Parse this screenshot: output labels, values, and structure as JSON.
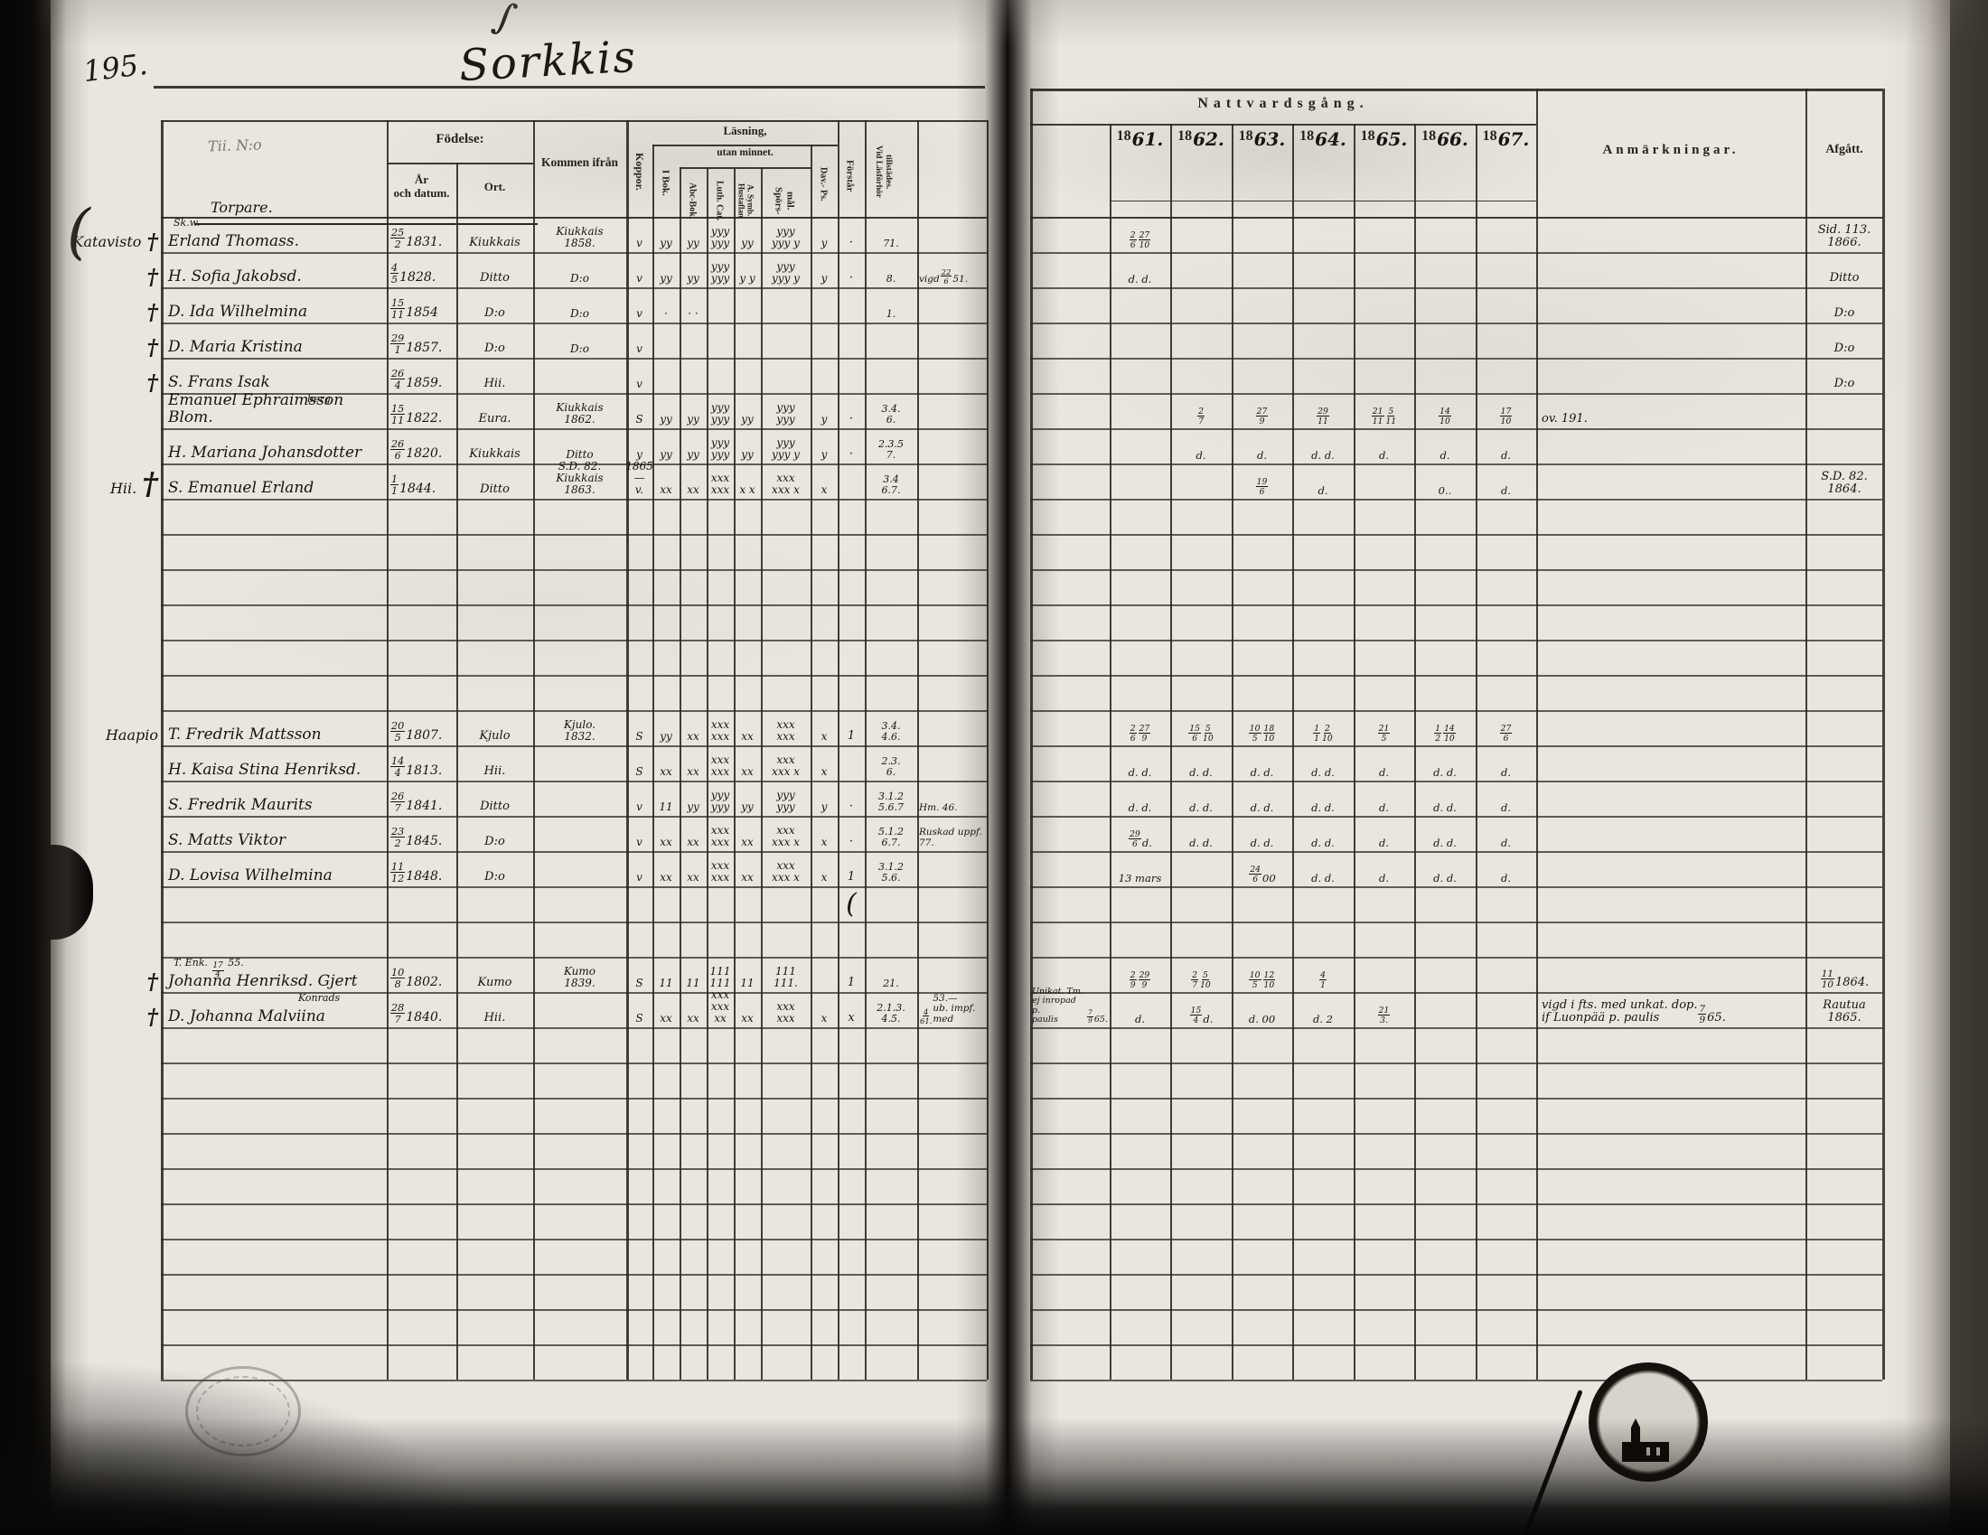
{
  "page": {
    "number": "195.",
    "title": "Sorkkis"
  },
  "header": {
    "name_col_note": "Tii. N:o",
    "fodelse": "Födelse:",
    "ar_och_datum": "År\noch datum.",
    "ort": "Ort.",
    "kommen": "Kommen ifrån",
    "koppor": "Koppor.",
    "lasning": "Läsning,",
    "utan_minnet": "utan minnet.",
    "i_bok": "I Bok.",
    "abc": "Abc-Bok.",
    "luth": "Luth. Cat.",
    "hust": "Hustaflan\nA. Symb.",
    "spors": "Spörs-\nmål.",
    "dav": "Dav.- Ps.",
    "forstar": "Förstår",
    "vidlasforhor": "Vid Läsförhör\ntillstädes.",
    "natt": "Nattvardsgång.",
    "year_prefix": "18",
    "years": [
      "61.",
      "62.",
      "63.",
      "64.",
      "65.",
      "66.",
      "67."
    ],
    "anm": "Anmärkningar.",
    "afg": "Afgått."
  },
  "sections": {
    "torpare": "Torpare."
  },
  "margins": [
    {
      "row": 0,
      "label": "Katavisto",
      "cross": true
    },
    {
      "row": 1,
      "cross": true
    },
    {
      "row": 2,
      "cross": true
    },
    {
      "row": 3,
      "cross": true
    },
    {
      "row": 4,
      "cross": true
    },
    {
      "row": 7,
      "label": "Hii.",
      "cross": true,
      "big": true
    },
    {
      "row": 14,
      "label": "Haapio"
    },
    {
      "row": 21,
      "cross": true
    },
    {
      "row": 22,
      "cross": true
    }
  ],
  "rows": [
    {
      "pre": "Sk.w.",
      "name": "Erland Thomass.",
      "born": "25/2 1831.",
      "ort": "Kiukkais",
      "kommen": "Kiukkais\n1858.",
      "koppor": "v",
      "ibok": "yy",
      "abc": "yy",
      "luth": "yyy\nyyy",
      "hust": "yy",
      "spors": "yyy\nyyy y",
      "dav": "y",
      "forstar": "·",
      "lasf": "71.",
      "natt": [
        "",
        "2/6 27/10",
        "",
        "",
        "",
        "",
        "",
        ""
      ],
      "afg": "Sid. 113.\n1866."
    },
    {
      "name": "H. Sofia Jakobsd.",
      "born": "4/5 1828.",
      "ort": "Ditto",
      "kommen": "D:o",
      "koppor": "v",
      "ibok": "yy",
      "abc": "yy",
      "luth": "yyy\nyyy",
      "hust": "y y",
      "spors": "yyy\nyyy y",
      "dav": "y",
      "forstar": "·",
      "lasf": "8.",
      "note": "vigd 22/6 51.",
      "natt": [
        "",
        "d. d.",
        "",
        "",
        "",
        "",
        "",
        ""
      ],
      "afg": "Ditto"
    },
    {
      "name": "D. Ida Wilhelmina",
      "born": "15/11 1854",
      "ort": "D:o",
      "kommen": "D:o",
      "koppor": "v",
      "ibok": "·",
      "abc": "· ·",
      "lasf": "1.",
      "afg": "D:o"
    },
    {
      "name": "D. Maria Kristina",
      "born": "29/1 1857.",
      "ort": "D:o",
      "kommen": "D:o",
      "koppor": "v",
      "afg": "D:o"
    },
    {
      "name": "S. Frans Isak",
      "born": "26/4 1859.",
      "ort": "Hii.",
      "koppor": "v",
      "afg": "D:o"
    },
    {
      "preRight": "berg",
      "name": "Emanuel Ephraimsson Blom.",
      "born": "15/11 1822.",
      "ort": "Eura.",
      "kommen": "Kiukkais\n1862.",
      "koppor": "S",
      "ibok": "yy",
      "abc": "yy",
      "luth": "yyy\nyyy",
      "hust": "yy",
      "spors": "yyy\nyyy",
      "dav": "y",
      "forstar": "·",
      "lasf": "3.4.\n6.",
      "natt": [
        "",
        "",
        "2/7",
        "27/9",
        "29/11",
        "21/11 5/11",
        "14/10",
        "17/10"
      ],
      "anm": "ov. 191."
    },
    {
      "name": "H. Mariana Johansdotter",
      "born": "26/6 1820.",
      "ort": "Kiukkais",
      "kommen": "Ditto",
      "koppor": "y",
      "ibok": "yy",
      "abc": "yy",
      "luth": "yyy\nyyy",
      "hust": "yy",
      "spors": "yyy\nyyy y",
      "dav": "y",
      "forstar": "·",
      "lasf": "2.3.5\n7.",
      "natt": [
        "",
        "",
        "d.",
        "d.",
        "d. d.",
        "d.",
        "d.",
        "d."
      ]
    },
    {
      "name": "S. Emanuel Erland",
      "born": "1/1 1844.",
      "ort": "Ditto",
      "kommen": "S.D. 82.\nKiukkais\n1863.",
      "koppor": "1865—\nv.",
      "ibok": "xx",
      "abc": "xx",
      "luth": "xxx\nxxx",
      "hust": "x x",
      "spors": "xxx\nxxx x",
      "dav": "x",
      "lasf": "3.4\n6.7.",
      "natt": [
        "",
        "",
        "",
        "19/6",
        "d.",
        "",
        "0..",
        "d."
      ],
      "afg": "S.D. 82.\n1864."
    },
    {},
    {},
    {},
    {},
    {},
    {},
    {
      "name": "T. Fredrik Mattsson",
      "born": "20/5 1807.",
      "ort": "Kjulo",
      "kommen": "Kjulo.\n1832.",
      "koppor": "S",
      "ibok": "yy",
      "abc": "xx",
      "luth": "xxx\nxxx",
      "hust": "xx",
      "spors": "xxx\nxxx",
      "dav": "x",
      "forstar": "1",
      "lasf": "3.4.\n4.6.",
      "natt": [
        "",
        "2/6 27/9",
        "15/6 5/10",
        "10/5 18/10",
        "1/1 2/10",
        "21/5",
        "1/2 14/10",
        "27/6"
      ]
    },
    {
      "name": "H. Kaisa Stina Henriksd.",
      "born": "14/4 1813.",
      "ort": "Hii.",
      "koppor": "S",
      "ibok": "xx",
      "abc": "xx",
      "luth": "xxx\nxxx",
      "hust": "xx",
      "spors": "xxx\nxxx x",
      "dav": "x",
      "lasf": "2.3.\n6.",
      "natt": [
        "",
        "d. d.",
        "d. d.",
        "d. d.",
        "d. d.",
        "d.",
        "d. d.",
        "d."
      ]
    },
    {
      "name": "S. Fredrik Maurits",
      "born": "26/7 1841.",
      "ort": "Ditto",
      "koppor": "v",
      "ibok": "11",
      "abc": "yy",
      "luth": "yyy\nyyy",
      "hust": "yy",
      "spors": "yyy\nyyy",
      "dav": "y",
      "forstar": "·",
      "lasf": "3.1.2\n5.6.7",
      "note": "Hm. 46.",
      "natt": [
        "",
        "d. d.",
        "d. d.",
        "d. d.",
        "d. d.",
        "d.",
        "d. d.",
        "d."
      ]
    },
    {
      "name": "S. Matts Viktor",
      "born": "23/2 1845.",
      "ort": "D:o",
      "koppor": "v",
      "ibok": "xx",
      "abc": "xx",
      "luth": "xxx\nxxx",
      "hust": "xx",
      "spors": "xxx\nxxx x",
      "dav": "x",
      "forstar": "·",
      "lasf": "5.1.2\n6.7.",
      "note": "Ruskad uppf.\n77.",
      "natt": [
        "",
        "29/6 d.",
        "d. d.",
        "d. d.",
        "d. d.",
        "d.",
        "d. d.",
        "d."
      ]
    },
    {
      "name": "D. Lovisa Wilhelmina",
      "born": "11/12 1848.",
      "ort": "D:o",
      "koppor": "v",
      "ibok": "xx",
      "abc": "xx",
      "luth": "xxx\nxxx",
      "hust": "xx",
      "spors": "xxx\nxxx x",
      "dav": "x",
      "forstar": "1",
      "lasf": "3.1.2\n5.6.",
      "natt": [
        "",
        "13 mars",
        "",
        "24/6 00",
        "d. d.",
        "d.",
        "d. d.",
        "d."
      ]
    },
    {
      "forstar": "("
    },
    {},
    {
      "pre": "T. Enk. 17/4 55.",
      "name": "Johanna Henriksd. Gjert",
      "born": "10/8 1802.",
      "ort": "Kumo",
      "kommen": "Kumo\n1839.",
      "koppor": "S",
      "ibok": "11",
      "abc": "11",
      "luth": "111\n111",
      "hust": "11",
      "spors": "111\n111.",
      "forstar": "1",
      "lasf": "21.",
      "natt": [
        "",
        "2/9 29/9",
        "2/7 5/10",
        "10/5 12/10",
        "4/1",
        "",
        "",
        ""
      ],
      "afg": "11/10 1864."
    },
    {
      "pre": "Konrads",
      "preAlign": "right",
      "name": "D. Johanna Malviina",
      "born": "28/7 1840.",
      "ort": "Hii.",
      "koppor": "S",
      "ibok": "xx",
      "abc": "xx",
      "luth": "xxx\nxxx xx",
      "hust": "xx",
      "spors": "xxx\nxxx",
      "dav": "x",
      "forstar": "x",
      "lasf": "2.1.3.\n4.5.",
      "note": "4/61. 53.—\nub. impf.\nmed",
      "natt": [
        "Unikat. Tm.\nej inropad p.\npaulis 7/9 65.",
        "d.",
        "15/4 d.",
        "d. 00",
        "d. 2",
        "21/3.",
        "",
        ""
      ],
      "anm": "vigd i fts. med unkat. dop.\nif Luonpää p. paulis 7/9 65.",
      "afg": "Rautua\n1865."
    },
    {},
    {},
    {},
    {},
    {},
    {},
    {},
    {},
    {},
    {}
  ]
}
